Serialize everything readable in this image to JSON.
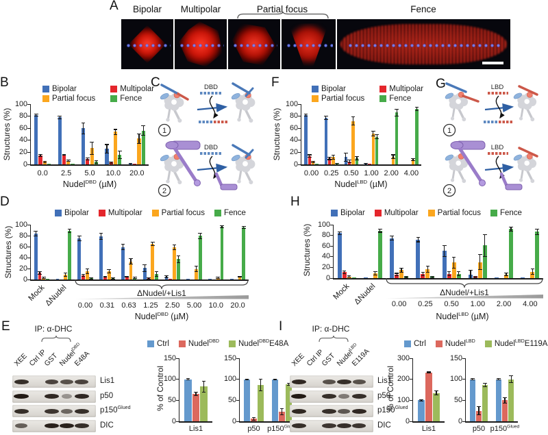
{
  "panels": {
    "a": "A",
    "b": "B",
    "c": "C",
    "d": "D",
    "e": "E",
    "f": "F",
    "g": "G",
    "h": "H",
    "i": "I"
  },
  "panel_a": {
    "categories": [
      "Bipolar",
      "Multipolar",
      "Partial focus",
      "Fence"
    ]
  },
  "diagrams": {
    "c": {
      "tag": "DBD",
      "steps": [
        "1",
        "2"
      ]
    },
    "g": {
      "tag": "LBD",
      "steps": [
        "1",
        "2"
      ]
    }
  },
  "blots": {
    "e": {
      "ip": "IP: α-DHC",
      "lanes": [
        "XEE",
        "Ctrl IP",
        "GST",
        "Nudel{DBD}",
        "E48A"
      ],
      "rows": [
        {
          "label": "Lis1",
          "bands": [
            0.85,
            0,
            0.7,
            0.6,
            0.7
          ]
        },
        {
          "label": "p50",
          "bands": [
            1,
            0,
            0.9,
            0.12,
            0.9
          ]
        },
        {
          "label": "p150{Glued}",
          "bands": [
            0.85,
            0,
            0.8,
            0.45,
            0.85
          ]
        },
        {
          "label": "DIC",
          "bands": [
            0.5,
            0,
            0.95,
            0.95,
            0.85
          ]
        }
      ]
    },
    "i": {
      "ip": "IP: α-DHC",
      "lanes": [
        "XEE",
        "Ctrl IP",
        "GST",
        "Nudel{LBD}",
        "E119A"
      ],
      "rows": [
        {
          "label": "Lis1",
          "bands": [
            0.9,
            0,
            0.6,
            0.85,
            0.6
          ]
        },
        {
          "label": "p50",
          "bands": [
            1,
            0,
            0.85,
            0.3,
            0.85
          ]
        },
        {
          "label": "p150{Glued}",
          "bands": [
            0.9,
            0,
            0.85,
            0.55,
            0.9
          ]
        },
        {
          "label": "DIC",
          "bands": [
            0.85,
            0,
            0.8,
            0.85,
            0.8
          ]
        }
      ]
    }
  },
  "chart_data": [
    {
      "id": "B",
      "type": "bar",
      "ymax": 100,
      "yticks": [
        0,
        20,
        40,
        60,
        80,
        100
      ],
      "ylabel": "Structures (%)",
      "xlabel": "Nudel{DBD} (µM)",
      "categories": [
        "0.0",
        "2.5",
        "5.0",
        "10.0",
        "20.0"
      ],
      "series": [
        {
          "name": "Bipolar",
          "color": "#4170b8",
          "values": [
            82,
            78,
            60,
            26,
            1
          ],
          "err": [
            2,
            2,
            9,
            7,
            1
          ]
        },
        {
          "name": "Multipolar",
          "color": "#e4262c",
          "values": [
            15,
            16,
            9,
            3,
            0.5
          ],
          "err": [
            2,
            1,
            2,
            1,
            0
          ]
        },
        {
          "name": "Partial focus",
          "color": "#fba61e",
          "values": [
            4,
            6,
            27,
            54,
            43
          ],
          "err": [
            1,
            1,
            10,
            4,
            8
          ]
        },
        {
          "name": "Fence",
          "color": "#46ab49",
          "values": [
            0.5,
            0.5,
            4,
            16,
            56
          ],
          "err": [
            0,
            0,
            2,
            6,
            8
          ]
        }
      ]
    },
    {
      "id": "F",
      "type": "bar",
      "ymax": 100,
      "yticks": [
        0,
        20,
        40,
        60,
        80,
        100
      ],
      "ylabel": "Structures (%)",
      "xlabel": "Nudel{LBD} (µM)",
      "categories": [
        "0.00",
        "0.25",
        "0.50",
        "1.00",
        "2.00",
        "4.00"
      ],
      "series": [
        {
          "name": "Bipolar",
          "color": "#4170b8",
          "values": [
            82,
            77,
            12,
            1,
            0,
            0
          ],
          "err": [
            2,
            3,
            7,
            1,
            0,
            0
          ]
        },
        {
          "name": "Multipolar",
          "color": "#e4262c",
          "values": [
            14,
            10,
            5,
            0.5,
            0,
            0
          ],
          "err": [
            2,
            2,
            2,
            0,
            0,
            0
          ]
        },
        {
          "name": "Partial focus",
          "color": "#fba61e",
          "values": [
            4,
            12,
            72,
            51,
            13,
            8
          ],
          "err": [
            1,
            3,
            7,
            4,
            3,
            2
          ]
        },
        {
          "name": "Fence",
          "color": "#46ab49",
          "values": [
            0.5,
            1,
            10,
            46,
            86,
            92
          ],
          "err": [
            0,
            1,
            3,
            3,
            6,
            3
          ]
        }
      ]
    },
    {
      "id": "D",
      "type": "bar",
      "ymax": 100,
      "yticks": [
        0,
        20,
        40,
        60,
        80,
        100
      ],
      "ylabel": "Structures (%)",
      "xlabel": "Nudel{DBD} (µM)",
      "group_label": "ΔNudel/+Lis1",
      "categories": [
        "Mock",
        "ΔNudel",
        "0.00",
        "0.31",
        "0.63",
        "1.25",
        "2.50",
        "5.00",
        "10.0",
        "20.0"
      ],
      "series": [
        {
          "name": "Bipolar",
          "color": "#4170b8",
          "values": [
            84,
            0.5,
            75,
            79,
            59,
            21,
            5,
            0.5,
            0.5,
            0.5
          ],
          "err": [
            4,
            0,
            4,
            6,
            5,
            6,
            2,
            0,
            0,
            0
          ]
        },
        {
          "name": "Multipolar",
          "color": "#e4262c",
          "values": [
            12,
            0,
            8,
            5,
            5,
            2,
            0.5,
            0,
            0,
            0
          ],
          "err": [
            2,
            0,
            2,
            1,
            1,
            1,
            0,
            0,
            0,
            0
          ]
        },
        {
          "name": "Partial focus",
          "color": "#fba61e",
          "values": [
            3,
            9,
            15,
            15,
            33,
            65,
            59,
            19,
            3,
            5
          ],
          "err": [
            1,
            3,
            4,
            3,
            5,
            3,
            4,
            5,
            1,
            1
          ]
        },
        {
          "name": "Fence",
          "color": "#46ab49",
          "values": [
            0.5,
            89,
            2,
            2,
            3,
            10,
            37,
            80,
            96,
            95
          ],
          "err": [
            0,
            3,
            1,
            1,
            1,
            4,
            6,
            5,
            2,
            2
          ]
        }
      ]
    },
    {
      "id": "H",
      "type": "bar",
      "ymax": 100,
      "yticks": [
        0,
        20,
        40,
        60,
        80,
        100
      ],
      "ylabel": "Structures (%)",
      "xlabel": "Nudel{LBD} (µM)",
      "group_label": "ΔNudel/+Lis1",
      "categories": [
        "Mock",
        "ΔNudel",
        "0.00",
        "0.25",
        "0.50",
        "1.00",
        "2.00",
        "4.00"
      ],
      "series": [
        {
          "name": "Bipolar",
          "color": "#4170b8",
          "values": [
            84,
            0.5,
            75,
            72,
            51,
            7,
            0.5,
            0.5
          ],
          "err": [
            3,
            0,
            4,
            4,
            10,
            8,
            0,
            0
          ]
        },
        {
          "name": "Multipolar",
          "color": "#e4262c",
          "values": [
            11,
            0,
            7,
            8,
            8,
            2,
            0,
            0
          ],
          "err": [
            3,
            0,
            2,
            3,
            4,
            1,
            0,
            0
          ]
        },
        {
          "name": "Partial focus",
          "color": "#fba61e",
          "values": [
            3,
            9,
            15,
            17,
            29,
            30,
            7,
            12
          ],
          "err": [
            1,
            3,
            4,
            6,
            10,
            14,
            3,
            5
          ]
        },
        {
          "name": "Fence",
          "color": "#46ab49",
          "values": [
            0.5,
            89,
            2,
            2,
            8,
            61,
            92,
            87
          ],
          "err": [
            0,
            3,
            1,
            1,
            4,
            21,
            4,
            5
          ]
        }
      ]
    },
    {
      "id": "E1",
      "type": "bar",
      "ymax": 150,
      "yticks": [
        0,
        50,
        100,
        150
      ],
      "ylabel": "% of Control",
      "xlabel": "",
      "categories": [
        "Lis1"
      ],
      "series": [
        {
          "name": "Ctrl",
          "color": "#6499cd",
          "values": [
            100
          ],
          "err": [
            2
          ]
        },
        {
          "name": "Nudel{DBD}",
          "color": "#dc685d",
          "values": [
            65
          ],
          "err": [
            4
          ]
        },
        {
          "name": "Nudel{DBD}E48A",
          "color": "#9cba5b",
          "values": [
            83
          ],
          "err": [
            13
          ]
        }
      ]
    },
    {
      "id": "E2",
      "type": "bar",
      "ymax": 150,
      "yticks": [
        0,
        50,
        100,
        150
      ],
      "ylabel": "",
      "xlabel": "",
      "categories": [
        "p50",
        "p150{Glued}"
      ],
      "series": [
        {
          "name": "Ctrl",
          "color": "#6499cd",
          "values": [
            100,
            100
          ],
          "err": [
            1,
            1
          ]
        },
        {
          "name": "Nudel{DBD}",
          "color": "#dc685d",
          "values": [
            6,
            23
          ],
          "err": [
            3,
            7
          ]
        },
        {
          "name": "Nudel{DBD}E48A",
          "color": "#9cba5b",
          "values": [
            87,
            88
          ],
          "err": [
            14,
            3
          ]
        }
      ]
    },
    {
      "id": "I1",
      "type": "bar",
      "ymax": 300,
      "yticks": [
        0,
        100,
        200,
        300
      ],
      "ylabel": "% of Control",
      "xlabel": "",
      "categories": [
        "Lis1"
      ],
      "series": [
        {
          "name": "Ctrl",
          "color": "#6499cd",
          "values": [
            100
          ],
          "err": [
            3
          ]
        },
        {
          "name": "Nudel{LBD}",
          "color": "#dc685d",
          "values": [
            233
          ],
          "err": [
            2
          ]
        },
        {
          "name": "Nudel{LBD}E119A",
          "color": "#9cba5b",
          "values": [
            135
          ],
          "err": [
            10
          ]
        }
      ]
    },
    {
      "id": "I2",
      "type": "bar",
      "ymax": 150,
      "yticks": [
        0,
        50,
        100,
        150
      ],
      "ylabel": "",
      "xlabel": "",
      "categories": [
        "p50",
        "p150{Glued}"
      ],
      "series": [
        {
          "name": "Ctrl",
          "color": "#6499cd",
          "values": [
            100,
            100
          ],
          "err": [
            2,
            2
          ]
        },
        {
          "name": "Nudel{LBD}",
          "color": "#dc685d",
          "values": [
            25,
            50
          ],
          "err": [
            10,
            7
          ]
        },
        {
          "name": "Nudel{LBD}E119A",
          "color": "#9cba5b",
          "values": [
            87,
            100
          ],
          "err": [
            4,
            8
          ]
        }
      ]
    }
  ]
}
